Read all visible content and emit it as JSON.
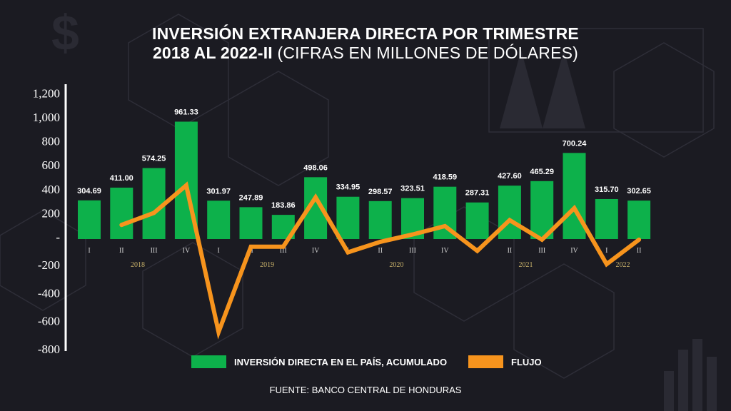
{
  "title_line1": "INVERSIÓN EXTRANJERA DIRECTA POR TRIMESTRE",
  "title_line2_bold": "2018 AL 2022-II",
  "title_line2_rest": " (CIFRAS EN MILLONES DE DÓLARES)",
  "source": "FUENTE: BANCO CENTRAL DE HONDURAS",
  "colors": {
    "background": "#1b1b22",
    "bars": "#0db14b",
    "line": "#f7941d",
    "year_label": "#c9b26a",
    "text": "#ffffff"
  },
  "chart_data": {
    "type": "bar+line",
    "categories": [
      "I",
      "II",
      "III",
      "IV",
      "I",
      "II",
      "III",
      "IV",
      "I",
      "II",
      "III",
      "IV",
      "I",
      "II",
      "III",
      "IV",
      "I",
      "II"
    ],
    "years": [
      {
        "label": "2018",
        "quarters": [
          0,
          3
        ]
      },
      {
        "label": "2019",
        "quarters": [
          4,
          7
        ]
      },
      {
        "label": "2020",
        "quarters": [
          8,
          11
        ]
      },
      {
        "label": "2021",
        "quarters": [
          12,
          15
        ]
      },
      {
        "label": "2022",
        "quarters": [
          16,
          17
        ]
      }
    ],
    "ylim": [
      -800,
      1200
    ],
    "yticks": [
      {
        "value": 1200,
        "label": "1,200"
      },
      {
        "value": 1000,
        "label": "1,000"
      },
      {
        "value": 800,
        "label": "800"
      },
      {
        "value": 600,
        "label": "600"
      },
      {
        "value": 400,
        "label": "400"
      },
      {
        "value": 200,
        "label": "200"
      },
      {
        "value": 0,
        "label": "-"
      },
      {
        "value": -200,
        "label": "-200"
      },
      {
        "value": -400,
        "label": "-400"
      },
      {
        "value": -600,
        "label": "-600"
      },
      {
        "value": -800,
        "label": "-800"
      }
    ],
    "grid": false,
    "legend_position": "bottom",
    "series": [
      {
        "name": "INVERSIÓN DIRECTA EN EL PAÍS, ACUMULADO",
        "type": "bar",
        "values": [
          304.69,
          411.0,
          574.25,
          961.33,
          301.97,
          247.89,
          183.86,
          498.06,
          334.95,
          298.57,
          323.51,
          418.59,
          287.31,
          427.6,
          465.29,
          700.24,
          315.7,
          302.65
        ],
        "labels": [
          "304.69",
          "411.00",
          "574.25",
          "961.33",
          "301.97",
          "247.89",
          "183.86",
          "498.06",
          "334.95",
          "298.57",
          "323.51",
          "418.59",
          "287.31",
          "427.60",
          "465.29",
          "700.24",
          "315.70",
          "302.65"
        ]
      },
      {
        "name": "FLUJO",
        "type": "line",
        "values": [
          null,
          100,
          200,
          430,
          -680,
          -70,
          -70,
          330,
          -110,
          -35,
          20,
          90,
          -100,
          140,
          -20,
          240,
          -195,
          -20
        ]
      }
    ]
  }
}
